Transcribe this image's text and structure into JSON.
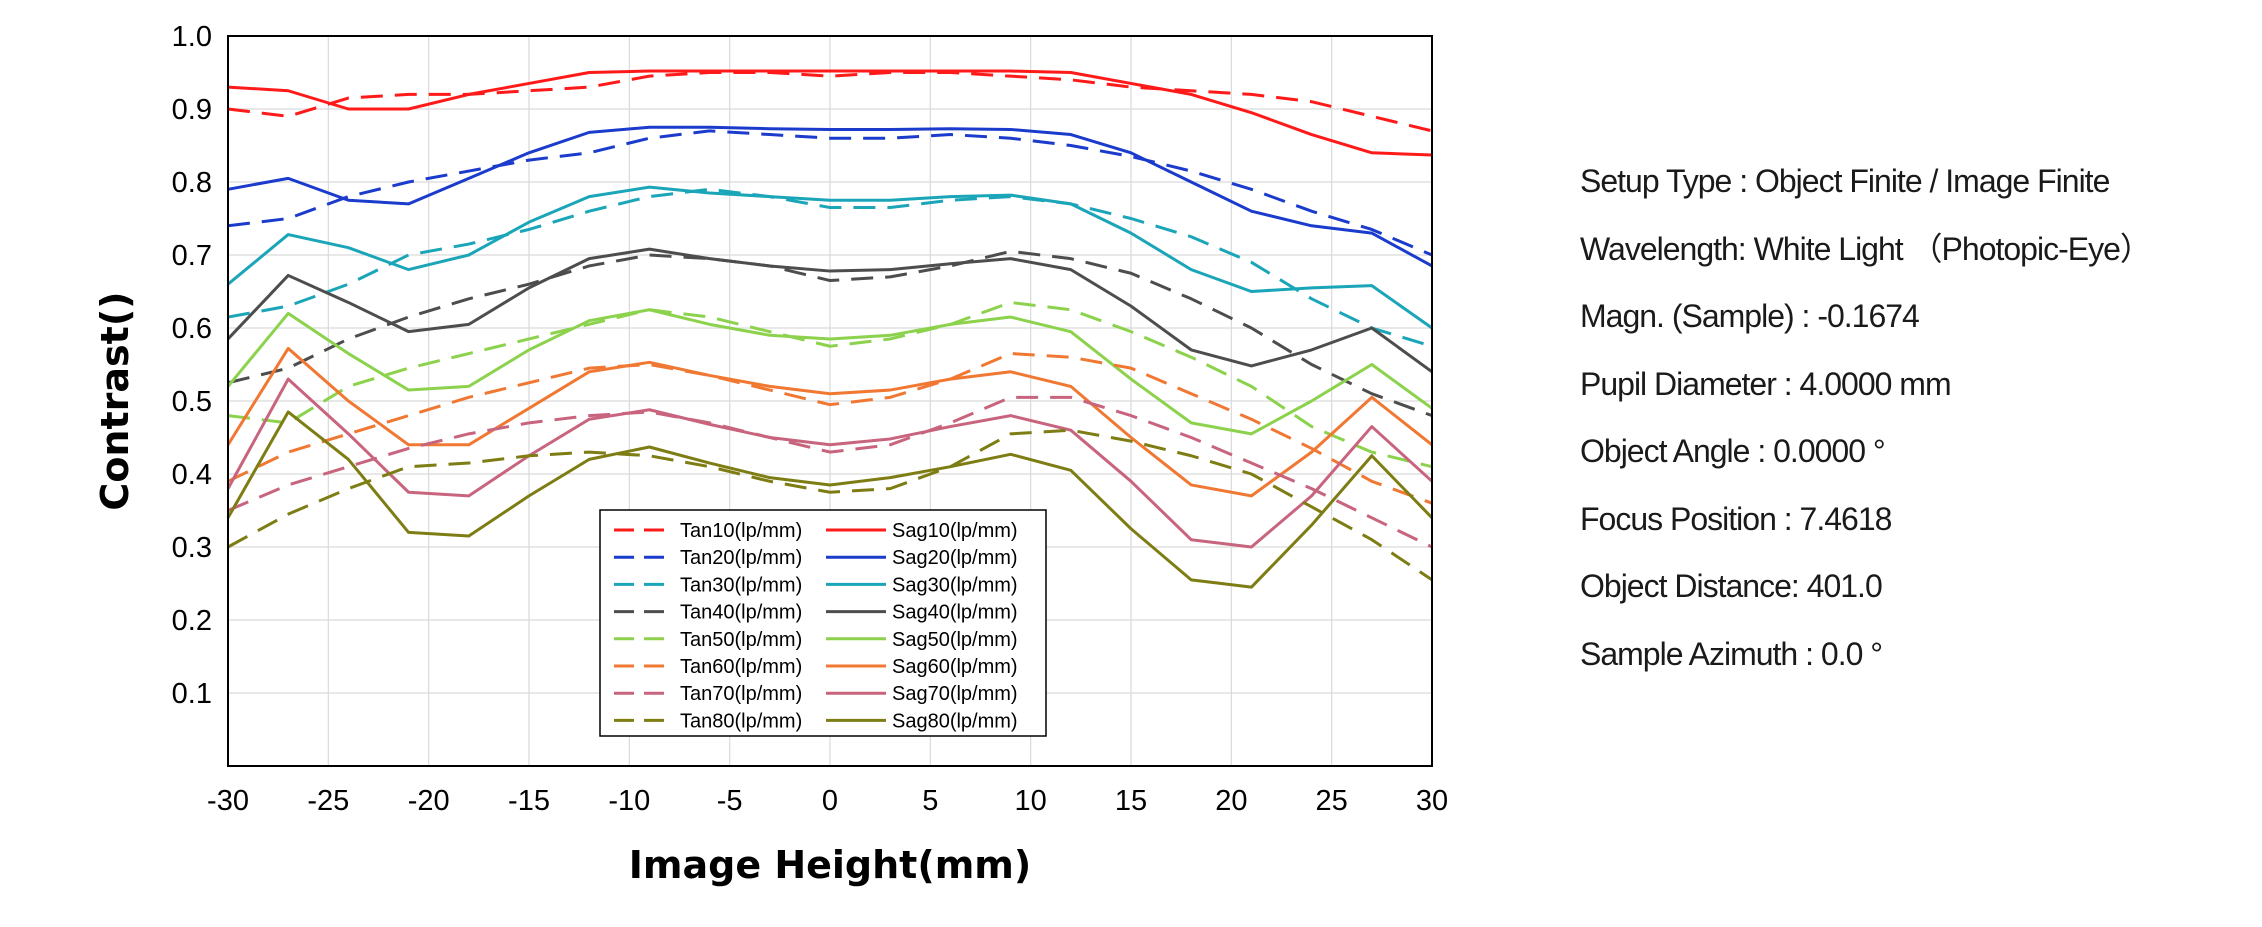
{
  "chart_data": {
    "type": "line",
    "title": "",
    "xlabel": "Image Height(mm)",
    "ylabel": "Contrast()",
    "xlim": [
      -30,
      30
    ],
    "ylim": [
      0,
      1.0
    ],
    "xticks": [
      -30,
      -25,
      -20,
      -15,
      -10,
      -5,
      0,
      5,
      10,
      15,
      20,
      25,
      30
    ],
    "yticks": [
      0.1,
      0.2,
      0.3,
      0.4,
      0.5,
      0.6,
      0.7,
      0.8,
      0.9,
      1.0
    ],
    "x_tick_labels": [
      "-30",
      "-25",
      "-20",
      "-15",
      "-10",
      "-5",
      "0",
      "5",
      "10",
      "15",
      "20",
      "25",
      "30"
    ],
    "y_tick_labels": [
      "0.1",
      "0.2",
      "0.3",
      "0.4",
      "0.5",
      "0.6",
      "0.7",
      "0.8",
      "0.9",
      "1.0"
    ],
    "grid": true,
    "legend_position": "bottom-center",
    "x": [
      -30,
      -27,
      -24,
      -21,
      -18,
      -15,
      -12,
      -9,
      -6,
      -3,
      0,
      3,
      6,
      9,
      12,
      15,
      18,
      21,
      24,
      27,
      30
    ],
    "series": [
      {
        "name": "Tan10(lp/mm)",
        "style": "dashed",
        "color": "#ff1a1a",
        "values": [
          0.9,
          0.89,
          0.915,
          0.92,
          0.92,
          0.925,
          0.93,
          0.945,
          0.95,
          0.95,
          0.945,
          0.95,
          0.95,
          0.945,
          0.94,
          0.93,
          0.925,
          0.92,
          0.91,
          0.89,
          0.87
        ]
      },
      {
        "name": "Sag10(lp/mm)",
        "style": "solid",
        "color": "#ff1a1a",
        "values": [
          0.93,
          0.925,
          0.9,
          0.9,
          0.92,
          0.935,
          0.95,
          0.952,
          0.952,
          0.952,
          0.952,
          0.952,
          0.952,
          0.952,
          0.95,
          0.935,
          0.92,
          0.895,
          0.865,
          0.84,
          0.837
        ]
      },
      {
        "name": "Tan20(lp/mm)",
        "style": "dashed",
        "color": "#1a3bcc",
        "values": [
          0.74,
          0.75,
          0.78,
          0.8,
          0.815,
          0.83,
          0.84,
          0.86,
          0.87,
          0.865,
          0.86,
          0.86,
          0.865,
          0.86,
          0.85,
          0.835,
          0.815,
          0.79,
          0.76,
          0.735,
          0.7
        ]
      },
      {
        "name": "Sag20(lp/mm)",
        "style": "solid",
        "color": "#1a3bcc",
        "values": [
          0.79,
          0.805,
          0.775,
          0.77,
          0.805,
          0.84,
          0.868,
          0.875,
          0.875,
          0.873,
          0.872,
          0.872,
          0.873,
          0.872,
          0.865,
          0.84,
          0.8,
          0.76,
          0.74,
          0.73,
          0.685
        ]
      },
      {
        "name": "Tan30(lp/mm)",
        "style": "dashed",
        "color": "#1aa5b8",
        "values": [
          0.615,
          0.63,
          0.66,
          0.7,
          0.715,
          0.735,
          0.76,
          0.78,
          0.79,
          0.78,
          0.765,
          0.765,
          0.775,
          0.78,
          0.77,
          0.75,
          0.725,
          0.69,
          0.64,
          0.6,
          0.575
        ]
      },
      {
        "name": "Sag30(lp/mm)",
        "style": "solid",
        "color": "#1aa5b8",
        "values": [
          0.66,
          0.728,
          0.71,
          0.68,
          0.7,
          0.745,
          0.78,
          0.793,
          0.785,
          0.78,
          0.775,
          0.775,
          0.78,
          0.782,
          0.77,
          0.73,
          0.68,
          0.65,
          0.655,
          0.658,
          0.6
        ]
      },
      {
        "name": "Tan40(lp/mm)",
        "style": "dashed",
        "color": "#4d4d4d",
        "values": [
          0.525,
          0.545,
          0.585,
          0.615,
          0.64,
          0.66,
          0.685,
          0.7,
          0.695,
          0.685,
          0.665,
          0.67,
          0.685,
          0.705,
          0.695,
          0.675,
          0.64,
          0.6,
          0.55,
          0.51,
          0.48
        ]
      },
      {
        "name": "Sag40(lp/mm)",
        "style": "solid",
        "color": "#4d4d4d",
        "values": [
          0.585,
          0.672,
          0.635,
          0.595,
          0.605,
          0.655,
          0.695,
          0.708,
          0.695,
          0.685,
          0.678,
          0.68,
          0.688,
          0.695,
          0.68,
          0.63,
          0.57,
          0.548,
          0.57,
          0.6,
          0.54
        ]
      },
      {
        "name": "Tan50(lp/mm)",
        "style": "dashed",
        "color": "#8cd24d",
        "values": [
          0.48,
          0.47,
          0.52,
          0.545,
          0.565,
          0.585,
          0.605,
          0.625,
          0.615,
          0.595,
          0.575,
          0.585,
          0.605,
          0.635,
          0.625,
          0.595,
          0.56,
          0.52,
          0.465,
          0.43,
          0.41
        ]
      },
      {
        "name": "Sag50(lp/mm)",
        "style": "solid",
        "color": "#8cd24d",
        "values": [
          0.52,
          0.62,
          0.565,
          0.515,
          0.52,
          0.57,
          0.61,
          0.625,
          0.605,
          0.59,
          0.585,
          0.59,
          0.605,
          0.615,
          0.595,
          0.53,
          0.47,
          0.455,
          0.5,
          0.55,
          0.49
        ]
      },
      {
        "name": "Tan60(lp/mm)",
        "style": "dashed",
        "color": "#f07832",
        "values": [
          0.39,
          0.43,
          0.455,
          0.48,
          0.505,
          0.525,
          0.545,
          0.55,
          0.535,
          0.515,
          0.495,
          0.505,
          0.53,
          0.565,
          0.56,
          0.545,
          0.51,
          0.475,
          0.435,
          0.39,
          0.36
        ]
      },
      {
        "name": "Sag60(lp/mm)",
        "style": "solid",
        "color": "#f07832",
        "values": [
          0.44,
          0.572,
          0.5,
          0.44,
          0.44,
          0.49,
          0.54,
          0.553,
          0.535,
          0.52,
          0.51,
          0.515,
          0.53,
          0.54,
          0.52,
          0.45,
          0.385,
          0.37,
          0.43,
          0.505,
          0.44
        ]
      },
      {
        "name": "Tan70(lp/mm)",
        "style": "dashed",
        "color": "#c8647d",
        "values": [
          0.35,
          0.385,
          0.41,
          0.435,
          0.455,
          0.47,
          0.48,
          0.485,
          0.47,
          0.45,
          0.43,
          0.44,
          0.47,
          0.505,
          0.505,
          0.48,
          0.45,
          0.415,
          0.38,
          0.34,
          0.3
        ]
      },
      {
        "name": "Sag70(lp/mm)",
        "style": "solid",
        "color": "#c8647d",
        "values": [
          0.38,
          0.53,
          0.455,
          0.375,
          0.37,
          0.425,
          0.475,
          0.488,
          0.468,
          0.45,
          0.44,
          0.448,
          0.465,
          0.48,
          0.46,
          0.39,
          0.31,
          0.3,
          0.37,
          0.465,
          0.39
        ]
      },
      {
        "name": "Tan80(lp/mm)",
        "style": "dashed",
        "color": "#7d7d14",
        "values": [
          0.3,
          0.345,
          0.38,
          0.41,
          0.415,
          0.425,
          0.43,
          0.425,
          0.41,
          0.39,
          0.375,
          0.38,
          0.41,
          0.455,
          0.46,
          0.445,
          0.425,
          0.4,
          0.355,
          0.31,
          0.255
        ]
      },
      {
        "name": "Sag80(lp/mm)",
        "style": "solid",
        "color": "#7d7d14",
        "values": [
          0.34,
          0.485,
          0.42,
          0.32,
          0.315,
          0.37,
          0.42,
          0.437,
          0.415,
          0.395,
          0.385,
          0.395,
          0.41,
          0.427,
          0.405,
          0.325,
          0.255,
          0.245,
          0.33,
          0.425,
          0.34
        ]
      }
    ]
  },
  "info": {
    "setup_type": "Setup Type     : Object Finite / Image Finite",
    "wavelength": "Wavelength: White Light （Photopic-Eye）",
    "magnification": "Magn. (Sample) : -0.1674",
    "pupil_diameter": "Pupil Diameter : 4.0000 mm",
    "object_angle": "Object Angle    : 0.0000 °",
    "focus_position": "Focus Position : 7.4618",
    "object_distance": "Object Distance: 401.0",
    "sample_azimuth": "Sample Azimuth : 0.0 °"
  }
}
